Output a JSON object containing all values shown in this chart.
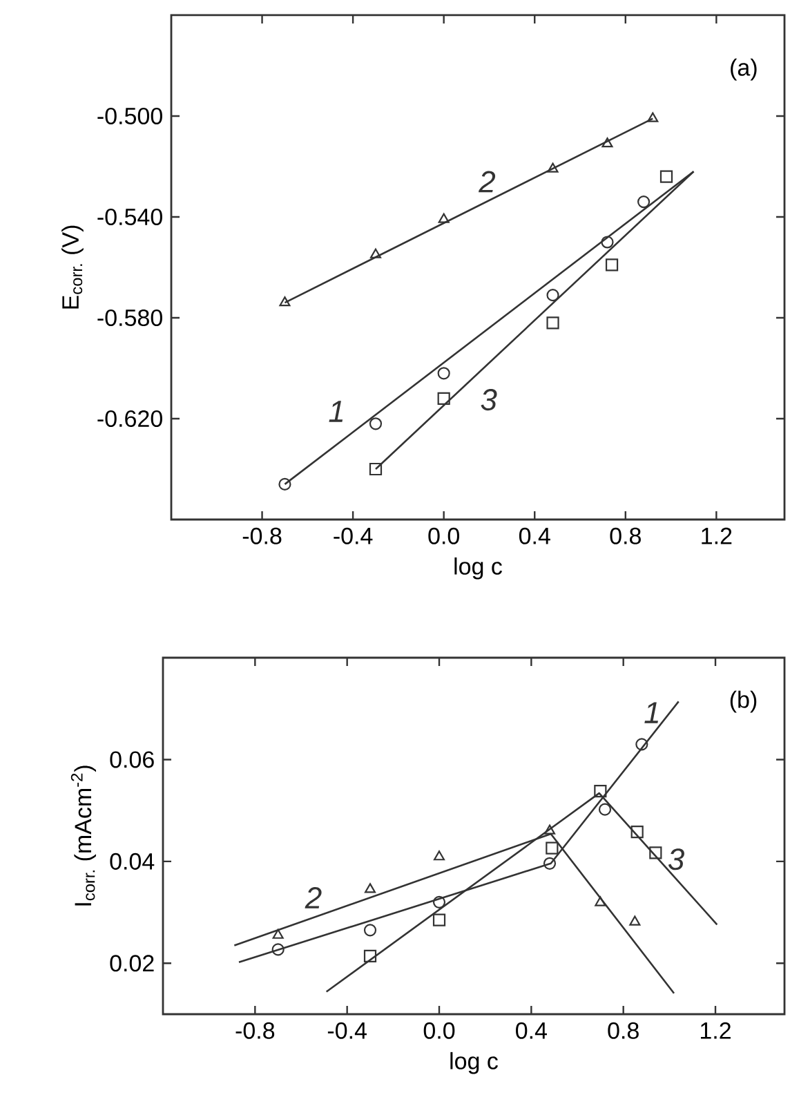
{
  "chart_data": [
    {
      "type": "scatter",
      "xlabel": "log c",
      "ylabel": "E$_{corr.}$ (V)",
      "xlim": [
        -1.2,
        1.5
      ],
      "ylim": [
        -0.66,
        -0.46
      ],
      "xticks": [
        {
          "value": -0.8,
          "label": "-0.8"
        },
        {
          "value": -0.4,
          "label": "-0.4"
        },
        {
          "value": 0,
          "label": "0.0"
        },
        {
          "value": 0.4,
          "label": "0.4"
        },
        {
          "value": 0.8,
          "label": "0.8"
        },
        {
          "value": 1.2,
          "label": "1.2"
        }
      ],
      "yticks": [
        {
          "value": -0.5,
          "label": "-0.500"
        },
        {
          "value": -0.54,
          "label": "-0.540"
        },
        {
          "value": -0.58,
          "label": "-0.580"
        },
        {
          "value": -0.62,
          "label": "-0.620"
        }
      ],
      "series": [
        {
          "type": "line",
          "name": "1",
          "color": "#333333",
          "x": [
            -0.7,
            1.1
          ],
          "values": [
            -0.646,
            -0.522
          ]
        },
        {
          "type": "line",
          "name": "2",
          "color": "#333333",
          "x": [
            -0.7,
            0.92
          ],
          "values": [
            -0.574,
            -0.501
          ]
        },
        {
          "type": "line",
          "name": "3",
          "color": "#333333",
          "x": [
            -0.3,
            1.1
          ],
          "values": [
            -0.64,
            -0.522
          ]
        },
        {
          "marker": "circle",
          "color": "#333333",
          "x": [
            -0.7,
            -0.3,
            0.0,
            0.48,
            0.72,
            0.88
          ],
          "values": [
            -0.646,
            -0.622,
            -0.602,
            -0.571,
            -0.55,
            -0.534
          ]
        },
        {
          "marker": "triangle",
          "color": "#333333",
          "x": [
            -0.7,
            -0.3,
            0.0,
            0.48,
            0.72,
            0.92
          ],
          "values": [
            -0.574,
            -0.555,
            -0.541,
            -0.521,
            -0.511,
            -0.501
          ]
        },
        {
          "marker": "square",
          "color": "#333333",
          "x": [
            -0.3,
            0.0,
            0.48,
            0.74,
            0.98
          ],
          "values": [
            -0.64,
            -0.612,
            -0.582,
            -0.559,
            -0.524
          ]
        }
      ],
      "annotations": [
        "(a)"
      ]
    },
    {
      "type": "scatter",
      "xlabel": "log c",
      "ylabel": "I$_{corr.}$ (mAcm$^{-2}$)",
      "xlim": [
        -1.2,
        1.5
      ],
      "ylim": [
        0.01,
        0.08
      ],
      "xticks": [
        {
          "value": -0.8,
          "label": "-0.8"
        },
        {
          "value": -0.4,
          "label": "-0.4"
        },
        {
          "value": 0,
          "label": "0.0"
        },
        {
          "value": 0.4,
          "label": "0.4"
        },
        {
          "value": 0.8,
          "label": "0.8"
        },
        {
          "value": 1.2,
          "label": "1.2"
        }
      ],
      "yticks": [
        {
          "value": 0.02,
          "label": "0.02"
        },
        {
          "value": 0.04,
          "label": "0.04"
        },
        {
          "value": 0.06,
          "label": "0.06"
        }
      ],
      "series": [
        {
          "type": "line",
          "name": "1",
          "color": "#333333",
          "x": [
            -0.87,
            0.485,
            1.04
          ],
          "values": [
            0.0202,
            0.0396,
            0.0714
          ]
        },
        {
          "type": "line",
          "name": "2",
          "color": "#333333",
          "x": [
            -0.89,
            0.485,
            1.02
          ],
          "values": [
            0.0235,
            0.0454,
            0.0141
          ]
        },
        {
          "type": "line",
          "name": "3",
          "color": "#333333",
          "x": [
            -0.49,
            0.695,
            1.207
          ],
          "values": [
            0.0144,
            0.0534,
            0.0276
          ]
        },
        {
          "marker": "circle",
          "color": "#333333",
          "x": [
            -0.7,
            -0.3,
            0.0,
            0.48,
            0.72,
            0.88
          ],
          "values": [
            0.0227,
            0.0265,
            0.032,
            0.0396,
            0.0502,
            0.063
          ]
        },
        {
          "marker": "triangle",
          "color": "#333333",
          "x": [
            -0.7,
            -0.3,
            0.0,
            0.48,
            0.7,
            0.85
          ],
          "values": [
            0.0255,
            0.0345,
            0.0409,
            0.046,
            0.0319,
            0.0281
          ]
        },
        {
          "marker": "square",
          "color": "#333333",
          "x": [
            -0.3,
            0.0,
            0.49,
            0.7,
            0.86,
            0.94
          ],
          "values": [
            0.0214,
            0.0285,
            0.0426,
            0.0538,
            0.0458,
            0.0417
          ]
        }
      ],
      "annotations": [
        "(b)"
      ]
    }
  ]
}
